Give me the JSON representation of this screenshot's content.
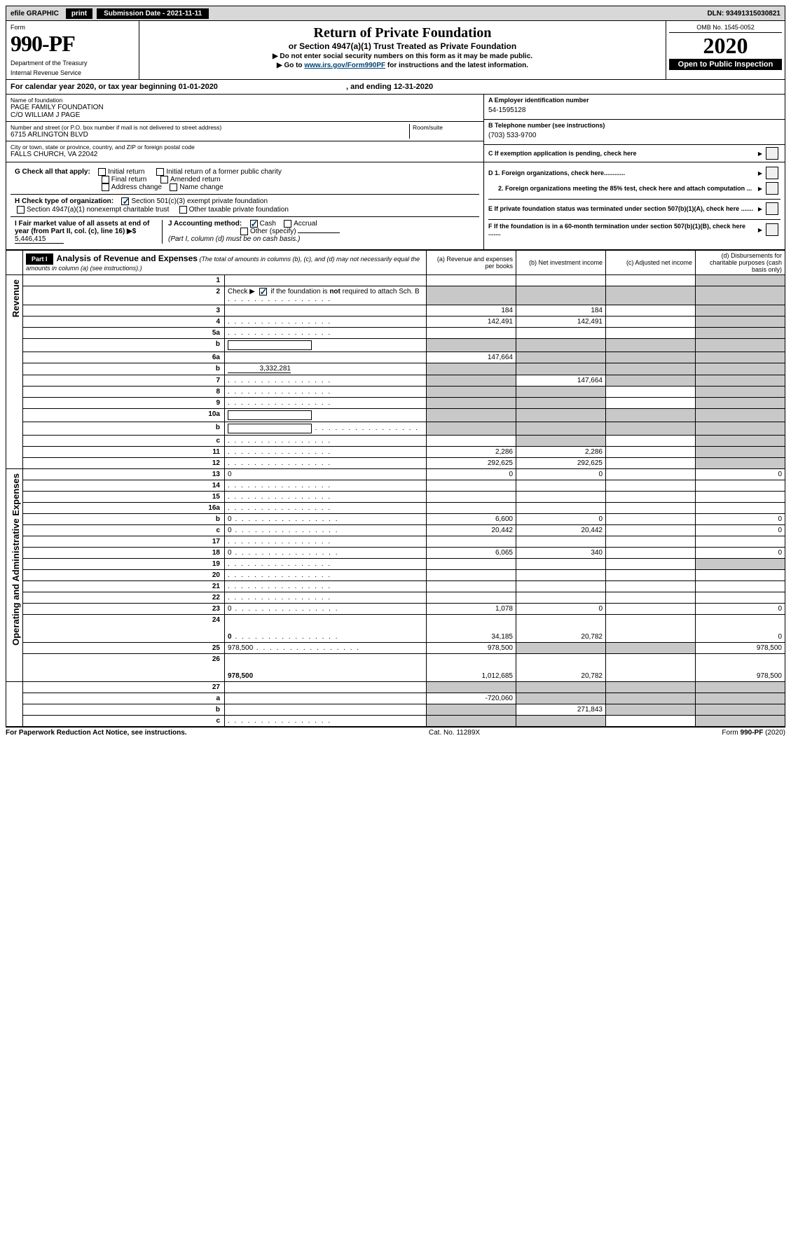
{
  "topbar": {
    "efile": "efile GRAPHIC",
    "print": "print",
    "sub_date_label": "Submission Date - ",
    "sub_date": "2021-11-11",
    "dln_label": "DLN: ",
    "dln": "93491315030821"
  },
  "header": {
    "form_label": "Form",
    "form_number": "990-PF",
    "dept1": "Department of the Treasury",
    "dept2": "Internal Revenue Service",
    "title": "Return of Private Foundation",
    "subtitle": "or Section 4947(a)(1) Trust Treated as Private Foundation",
    "instr1": "▶ Do not enter social security numbers on this form as it may be made public.",
    "instr2_pre": "▶ Go to ",
    "instr2_link": "www.irs.gov/Form990PF",
    "instr2_post": " for instructions and the latest information.",
    "omb": "OMB No. 1545-0052",
    "year": "2020",
    "open": "Open to Public Inspection"
  },
  "cal_year": {
    "pre": "For calendar year 2020, or tax year beginning ",
    "begin": "01-01-2020",
    "mid": " , and ending ",
    "end": "12-31-2020"
  },
  "entity": {
    "name_label": "Name of foundation",
    "name1": "PAGE FAMILY FOUNDATION",
    "name2": "C/O WILLIAM J PAGE",
    "addr_label": "Number and street (or P.O. box number if mail is not delivered to street address)",
    "addr": "6715 ARLINGTON BLVD",
    "room_label": "Room/suite",
    "city_label": "City or town, state or province, country, and ZIP or foreign postal code",
    "city": "FALLS CHURCH, VA  22042",
    "A_label": "A Employer identification number",
    "A_val": "54-1595128",
    "B_label": "B Telephone number (see instructions)",
    "B_val": "(703) 533-9700",
    "C_label": "C If exemption application is pending, check here"
  },
  "checks": {
    "G_label": "G Check all that apply:",
    "g1": "Initial return",
    "g2": "Initial return of a former public charity",
    "g3": "Final return",
    "g4": "Amended return",
    "g5": "Address change",
    "g6": "Name change",
    "H_label": "H Check type of organization:",
    "h1": "Section 501(c)(3) exempt private foundation",
    "h2": "Section 4947(a)(1) nonexempt charitable trust",
    "h3": "Other taxable private foundation",
    "I_label": "I Fair market value of all assets at end of year (from Part II, col. (c), line 16) ▶$ ",
    "I_val": "5,446,415",
    "J_label": "J Accounting method:",
    "j1": "Cash",
    "j2": "Accrual",
    "j3": "Other (specify)",
    "J_note": "(Part I, column (d) must be on cash basis.)",
    "D1": "D 1. Foreign organizations, check here............",
    "D2": "2. Foreign organizations meeting the 85% test, check here and attach computation ...",
    "E": "E  If private foundation status was terminated under section 507(b)(1)(A), check here .......",
    "F": "F  If the foundation is in a 60-month termination under section 507(b)(1)(B), check here ......."
  },
  "part1": {
    "label": "Part I",
    "title": "Analysis of Revenue and Expenses",
    "title_note": " (The total of amounts in columns (b), (c), and (d) may not necessarily equal the amounts in column (a) (see instructions).)",
    "col_a": "(a)    Revenue and expenses per books",
    "col_b": "(b)    Net investment income",
    "col_c": "(c)    Adjusted net income",
    "col_d": "(d)    Disbursements for charitable purposes (cash basis only)"
  },
  "sides": {
    "rev": "Revenue",
    "exp": "Operating and Administrative Expenses"
  },
  "rows": [
    {
      "n": "1",
      "d": "",
      "a": "",
      "b": "",
      "c": "",
      "shade_c": false,
      "shade_d": true
    },
    {
      "n": "2",
      "d": "",
      "dots": true,
      "a": "",
      "b": "",
      "c": "",
      "shade_a": true,
      "shade_b": true,
      "shade_c": true,
      "shade_d": true,
      "checked": true,
      "bold_not": true
    },
    {
      "n": "3",
      "d": "",
      "a": "184",
      "b": "184",
      "c": "",
      "shade_d": true
    },
    {
      "n": "4",
      "d": "",
      "dots": true,
      "a": "142,491",
      "b": "142,491",
      "c": "",
      "shade_d": true
    },
    {
      "n": "5a",
      "d": "",
      "dots": true,
      "a": "",
      "b": "",
      "c": "",
      "shade_d": true
    },
    {
      "n": "b",
      "d": "",
      "inline_box": true,
      "a": "",
      "b": "",
      "c": "",
      "shade_a": true,
      "shade_b": true,
      "shade_c": true,
      "shade_d": true
    },
    {
      "n": "6a",
      "d": "",
      "a": "147,664",
      "b": "",
      "c": "",
      "shade_b": true,
      "shade_c": true,
      "shade_d": true
    },
    {
      "n": "b",
      "d": "",
      "inline_val": "3,332,281",
      "a": "",
      "b": "",
      "c": "",
      "shade_a": true,
      "shade_b": true,
      "shade_c": true,
      "shade_d": true
    },
    {
      "n": "7",
      "d": "",
      "dots": true,
      "a": "",
      "b": "147,664",
      "c": "",
      "shade_a": true,
      "shade_c": true,
      "shade_d": true
    },
    {
      "n": "8",
      "d": "",
      "dots": true,
      "a": "",
      "b": "",
      "c": "",
      "shade_a": true,
      "shade_b": true,
      "shade_d": true
    },
    {
      "n": "9",
      "d": "",
      "dots": true,
      "a": "",
      "b": "",
      "c": "",
      "shade_a": true,
      "shade_b": true,
      "shade_d": true
    },
    {
      "n": "10a",
      "d": "",
      "inline_box": true,
      "a": "",
      "b": "",
      "c": "",
      "shade_a": true,
      "shade_b": true,
      "shade_c": true,
      "shade_d": true
    },
    {
      "n": "b",
      "d": "",
      "dots": true,
      "inline_box": true,
      "a": "",
      "b": "",
      "c": "",
      "shade_a": true,
      "shade_b": true,
      "shade_c": true,
      "shade_d": true
    },
    {
      "n": "c",
      "d": "",
      "dots": true,
      "a": "",
      "b": "",
      "c": "",
      "shade_b": true,
      "shade_d": true
    },
    {
      "n": "11",
      "d": "",
      "dots": true,
      "a": "2,286",
      "b": "2,286",
      "c": "",
      "shade_d": true
    },
    {
      "n": "12",
      "d": "",
      "dots": true,
      "bold": true,
      "a": "292,625",
      "b": "292,625",
      "c": "",
      "shade_d": true
    },
    {
      "n": "13",
      "d": "0",
      "a": "0",
      "b": "0",
      "c": ""
    },
    {
      "n": "14",
      "d": "",
      "dots": true,
      "a": "",
      "b": "",
      "c": ""
    },
    {
      "n": "15",
      "d": "",
      "dots": true,
      "a": "",
      "b": "",
      "c": ""
    },
    {
      "n": "16a",
      "d": "",
      "dots": true,
      "a": "",
      "b": "",
      "c": ""
    },
    {
      "n": "b",
      "d": "0",
      "dots": true,
      "a": "6,600",
      "b": "0",
      "c": ""
    },
    {
      "n": "c",
      "d": "0",
      "dots": true,
      "a": "20,442",
      "b": "20,442",
      "c": ""
    },
    {
      "n": "17",
      "d": "",
      "dots": true,
      "a": "",
      "b": "",
      "c": ""
    },
    {
      "n": "18",
      "d": "0",
      "dots": true,
      "a": "6,065",
      "b": "340",
      "c": ""
    },
    {
      "n": "19",
      "d": "",
      "dots": true,
      "a": "",
      "b": "",
      "c": "",
      "shade_d": true
    },
    {
      "n": "20",
      "d": "",
      "dots": true,
      "a": "",
      "b": "",
      "c": ""
    },
    {
      "n": "21",
      "d": "",
      "dots": true,
      "a": "",
      "b": "",
      "c": ""
    },
    {
      "n": "22",
      "d": "",
      "dots": true,
      "a": "",
      "b": "",
      "c": ""
    },
    {
      "n": "23",
      "d": "0",
      "dots": true,
      "a": "1,078",
      "b": "0",
      "c": ""
    },
    {
      "n": "24",
      "d": "0",
      "dots": true,
      "bold": true,
      "a": "34,185",
      "b": "20,782",
      "c": "",
      "tall": true
    },
    {
      "n": "25",
      "d": "978,500",
      "dots": true,
      "a": "978,500",
      "b": "",
      "c": "",
      "shade_b": true,
      "shade_c": true
    },
    {
      "n": "26",
      "d": "978,500",
      "bold": true,
      "a": "1,012,685",
      "b": "20,782",
      "c": "",
      "tall": true
    },
    {
      "n": "27",
      "d": "",
      "a": "",
      "b": "",
      "c": "",
      "shade_a": true,
      "shade_b": true,
      "shade_c": true,
      "shade_d": true,
      "noside": true
    },
    {
      "n": "a",
      "d": "",
      "bold": true,
      "a": "-720,060",
      "b": "",
      "c": "",
      "shade_b": true,
      "shade_c": true,
      "shade_d": true,
      "noside": true
    },
    {
      "n": "b",
      "d": "",
      "bold": true,
      "a": "",
      "b": "271,843",
      "c": "",
      "shade_a": true,
      "shade_c": true,
      "shade_d": true,
      "noside": true
    },
    {
      "n": "c",
      "d": "",
      "dots": true,
      "bold": true,
      "a": "",
      "b": "",
      "c": "",
      "shade_a": true,
      "shade_b": true,
      "shade_d": true,
      "noside": true
    }
  ],
  "footer": {
    "left": "For Paperwork Reduction Act Notice, see instructions.",
    "center": "Cat. No. 11289X",
    "right": "Form 990-PF (2020)"
  }
}
